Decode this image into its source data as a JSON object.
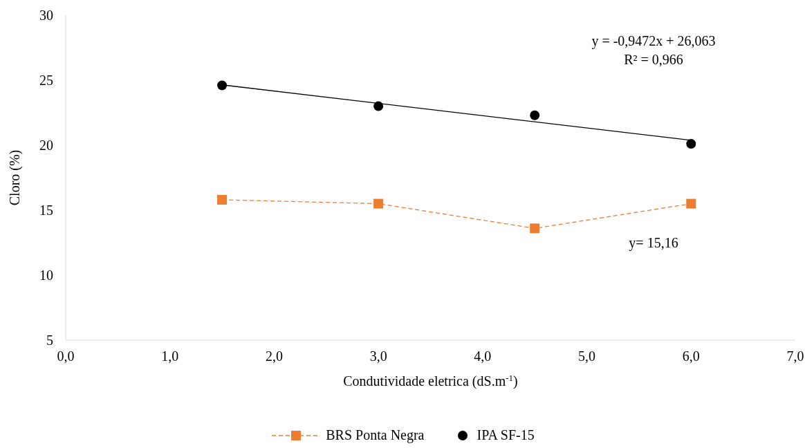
{
  "chart_data": {
    "type": "line",
    "xlabel": "Condutividade eletrica (dS.m$^{-1}$)",
    "ylabel": "Cloro (%)",
    "xlim": [
      0,
      7
    ],
    "xticks": [
      {
        "value": 0,
        "label": "0,0"
      },
      {
        "value": 1,
        "label": "1,0"
      },
      {
        "value": 2,
        "label": "2,0"
      },
      {
        "value": 3,
        "label": "3,0"
      },
      {
        "value": 4,
        "label": "4,0"
      },
      {
        "value": 5,
        "label": "5,0"
      },
      {
        "value": 6,
        "label": "6,0"
      },
      {
        "value": 7,
        "label": "7,0"
      }
    ],
    "ylim": [
      5,
      30
    ],
    "yticks": [
      5,
      10,
      15,
      20,
      25,
      30
    ],
    "grid": false,
    "legend": "bottom",
    "series": [
      {
        "name": "BRS Ponta Negra",
        "color": "#ed7d31",
        "marker": "square",
        "line_style": "dashed",
        "x": [
          1.5,
          3,
          4.5,
          6
        ],
        "values": [
          15.8,
          15.5,
          13.6,
          15.5
        ]
      },
      {
        "name": "IPA SF-15",
        "type": "scatter",
        "color": "#000000",
        "marker": "circle",
        "x": [
          1.5,
          3,
          4.5,
          6
        ],
        "values": [
          24.6,
          23.0,
          22.3,
          20.1
        ]
      },
      {
        "color": "#000000",
        "marker": "none",
        "line_style": "solid",
        "x": [
          1.5,
          6
        ],
        "values": [
          24.64,
          20.38
        ]
      }
    ],
    "annotations": [
      "y = -0,9472x + 26,063",
      "R² = 0,966",
      "y= 15,16"
    ]
  }
}
